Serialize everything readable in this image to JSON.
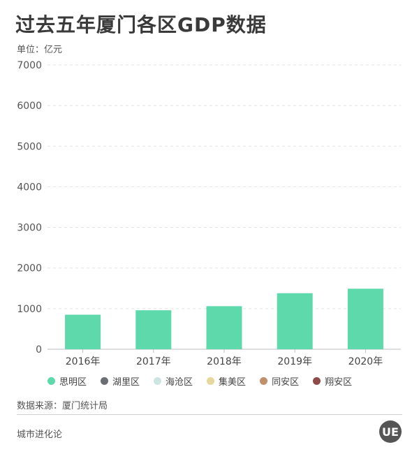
{
  "header": {
    "title": "过去五年厦门各区GDP数据",
    "unit": "单位：亿元"
  },
  "chart_data": {
    "type": "bar",
    "categories": [
      "2016年",
      "2017年",
      "2018年",
      "2019年",
      "2020年"
    ],
    "series": [
      {
        "name": "思明区",
        "color": "#5ed9ab",
        "values": [
          850,
          960,
          1060,
          1380,
          1490
        ]
      }
    ],
    "legend_series": [
      {
        "name": "思明区",
        "color": "#5ed9ab"
      },
      {
        "name": "湖里区",
        "color": "#6b6e72"
      },
      {
        "name": "海沧区",
        "color": "#cde5e2"
      },
      {
        "name": "集美区",
        "color": "#e6d79c"
      },
      {
        "name": "同安区",
        "color": "#c08f6c"
      },
      {
        "name": "翔安区",
        "color": "#8e4b48"
      }
    ],
    "yticks": [
      0,
      1000,
      2000,
      3000,
      4000,
      5000,
      6000,
      7000
    ],
    "ylim": [
      0,
      7000
    ],
    "grid": true,
    "legend_position": "bottom"
  },
  "footer": {
    "source": "数据来源：厦门统计局",
    "brand": "城市进化论",
    "logo_text": "UE"
  }
}
